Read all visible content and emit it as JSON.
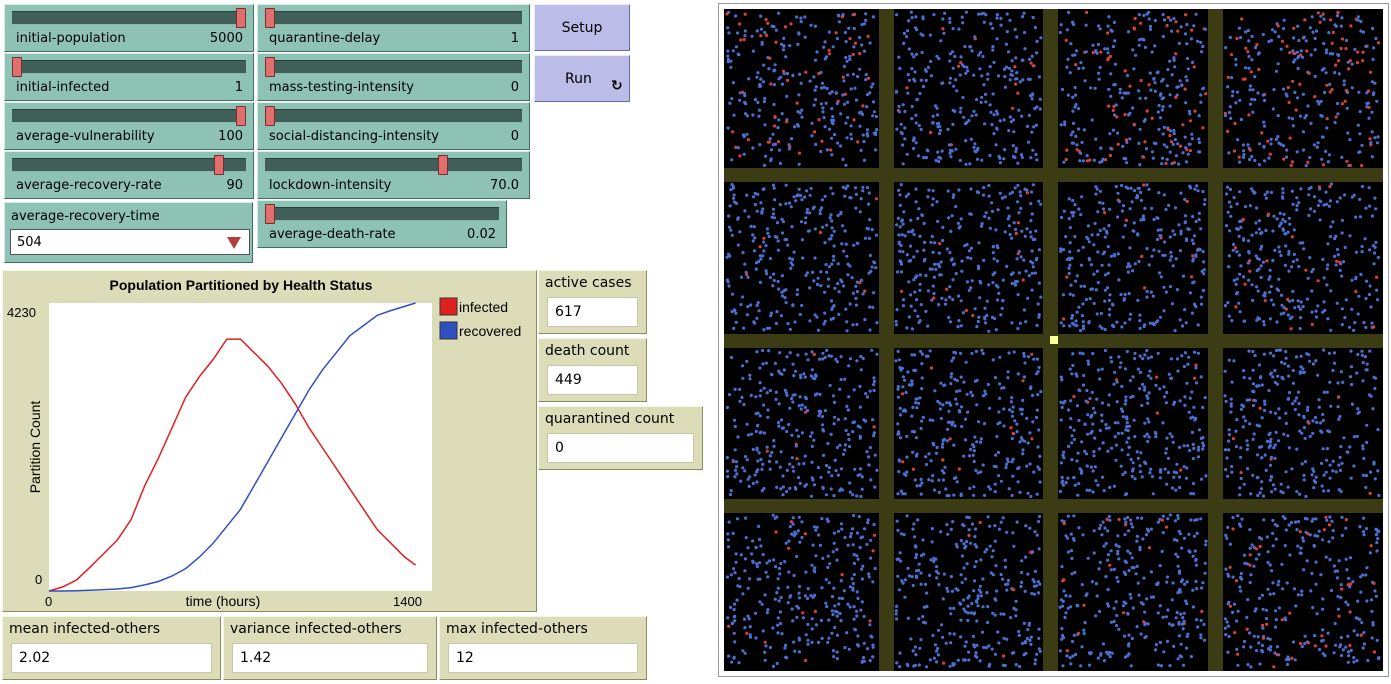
{
  "sliders": [
    {
      "label": "initial-population",
      "value": "5000",
      "pos": 1.0
    },
    {
      "label": "quarantine-delay",
      "value": "1",
      "pos": 0.0
    },
    {
      "label": "initial-infected",
      "value": "1",
      "pos": 0.0
    },
    {
      "label": "mass-testing-intensity",
      "value": "0",
      "pos": 0.0
    },
    {
      "label": "average-vulnerability",
      "value": "100",
      "pos": 1.0
    },
    {
      "label": "social-distancing-intensity",
      "value": "0",
      "pos": 0.0
    },
    {
      "label": "average-recovery-rate",
      "value": "90",
      "pos": 0.9
    },
    {
      "label": "lockdown-intensity",
      "value": "70.0",
      "pos": 0.7
    },
    {
      "label": "average-death-rate",
      "value": "0.02",
      "pos": 0.0
    }
  ],
  "buttons": {
    "setup": "Setup",
    "run": "Run",
    "run_icon": "forever-icon"
  },
  "chooser": {
    "label": "average-recovery-time",
    "value": "504"
  },
  "plot": {
    "title": "Population Partitioned by Health Status",
    "ylabel": "Partition Count",
    "xlabel": "time (hours)",
    "ymax_label": "4230",
    "ymin_label": "0",
    "xmin_label": "0",
    "xmax_label": "1400"
  },
  "chart_data": {
    "type": "line",
    "title": "Population Partitioned by Health Status",
    "xlabel": "time (hours)",
    "ylabel": "Partition Count",
    "xlim": [
      0,
      1400
    ],
    "ylim": [
      0,
      4230
    ],
    "legend_position": "right",
    "series": [
      {
        "name": "infected",
        "color": "#e02020",
        "x": [
          0,
          50,
          100,
          150,
          200,
          250,
          300,
          350,
          400,
          450,
          500,
          550,
          600,
          650,
          700,
          750,
          800,
          850,
          900,
          950,
          1000,
          1050,
          1100,
          1150,
          1200,
          1250,
          1300,
          1340
        ],
        "y": [
          0,
          60,
          160,
          350,
          550,
          750,
          1050,
          1550,
          1950,
          2400,
          2850,
          3150,
          3400,
          3700,
          3700,
          3500,
          3300,
          3050,
          2750,
          2400,
          2100,
          1800,
          1500,
          1200,
          900,
          700,
          500,
          380
        ]
      },
      {
        "name": "recovered",
        "color": "#3050c0",
        "x": [
          0,
          50,
          100,
          150,
          200,
          250,
          300,
          350,
          400,
          450,
          500,
          550,
          600,
          650,
          700,
          750,
          800,
          850,
          900,
          950,
          1000,
          1050,
          1100,
          1150,
          1200,
          1250,
          1300,
          1340
        ],
        "y": [
          0,
          0,
          5,
          10,
          20,
          30,
          50,
          90,
          140,
          220,
          330,
          500,
          700,
          950,
          1200,
          1550,
          1900,
          2250,
          2600,
          2950,
          3250,
          3500,
          3750,
          3900,
          4050,
          4120,
          4180,
          4230
        ]
      }
    ]
  },
  "monitors": {
    "active_cases": {
      "label": "active cases",
      "value": "617"
    },
    "death_count": {
      "label": "death count",
      "value": "449"
    },
    "quarantined_count": {
      "label": "quarantined count",
      "value": "0"
    },
    "mean_infected": {
      "label": "mean infected-others",
      "value": "2.02"
    },
    "variance_infected": {
      "label": "variance infected-others",
      "value": "1.42"
    },
    "max_infected": {
      "label": "max infected-others",
      "value": "12"
    }
  },
  "world": {
    "background": "#000000",
    "road_color": "#3c3c14",
    "healthy_color": "#4a6fd0",
    "infected_color": "#d84040",
    "marker_color": "#ffff99"
  }
}
